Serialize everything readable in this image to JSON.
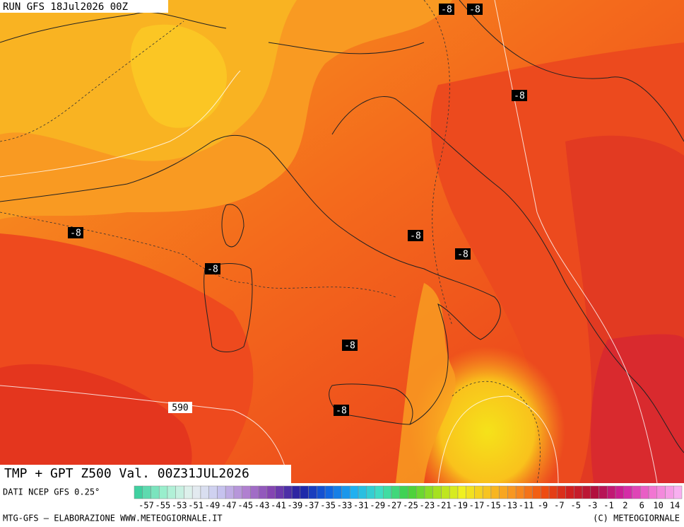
{
  "header": {
    "run": "RUN GFS 18Jul2026 00Z"
  },
  "map": {
    "contour_labels": [
      "-8",
      "-8",
      "-8",
      "-8",
      "-8",
      "-8",
      "-8",
      "-8",
      "-8"
    ],
    "height_label": "590"
  },
  "footer": {
    "title": "TMP + GPT Z500 Val. 00Z31JUL2026",
    "source": "DATI NCEP GFS 0.25°",
    "credit": "MTG-GFS – ELABORAZIONE WWW.METEOGIORNALE.IT",
    "copyright": "(C) METEOGIORNALE"
  },
  "colorbar": {
    "labels": [
      -57,
      -55,
      -53,
      -51,
      -49,
      -47,
      -45,
      -43,
      -41,
      -39,
      -37,
      -35,
      -33,
      -31,
      -29,
      -27,
      -25,
      -23,
      -21,
      -19,
      -17,
      -15,
      -13,
      -11,
      -9,
      -7,
      -5,
      -3,
      -1,
      2,
      6,
      10,
      14
    ]
  }
}
